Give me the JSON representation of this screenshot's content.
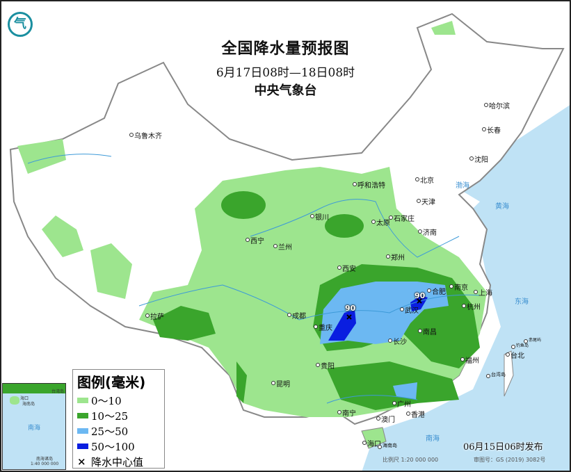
{
  "title": "全国降水量预报图",
  "period": "6月17日08时—18日08时",
  "issuer": "中央气象台",
  "logo_icon": "cma-logo",
  "legend": {
    "title": "图例(毫米)",
    "items": [
      {
        "label": "0～10",
        "color": "#9de58e"
      },
      {
        "label": "10～25",
        "color": "#3aa52c"
      },
      {
        "label": "25～50",
        "color": "#6cb8f2"
      },
      {
        "label": "50～100",
        "color": "#0a1ee0"
      }
    ],
    "center_label": "降水中心值"
  },
  "rain_centers": [
    {
      "value": "90",
      "near": "重庆"
    },
    {
      "value": "90",
      "near": "武汉"
    }
  ],
  "cities": [
    "乌鲁木齐",
    "哈尔滨",
    "长春",
    "沈阳",
    "北京",
    "天津",
    "呼和浩特",
    "石家庄",
    "太原",
    "银川",
    "济南",
    "西宁",
    "兰州",
    "郑州",
    "西安",
    "南京",
    "合肥",
    "上海",
    "杭州",
    "拉萨",
    "成都",
    "武汉",
    "重庆",
    "长沙",
    "南昌",
    "福州",
    "台北",
    "贵阳",
    "昆明",
    "南宁",
    "广州",
    "香港",
    "澳门",
    "海口"
  ],
  "seas": [
    "渤海",
    "黄海",
    "东海",
    "南海"
  ],
  "islands": [
    "台湾岛",
    "海南岛",
    "钓鱼岛",
    "赤尾屿"
  ],
  "inset": {
    "labels": [
      "海口",
      "海南岛",
      "台湾岛",
      "南海",
      "南海诸岛"
    ],
    "scale": "1:40 000 000"
  },
  "publish_time": "06月15日06时发布",
  "scale": "比例尺 1:20 000 000",
  "review_number": "审图号：GS (2019) 3082号",
  "colors": {
    "sea": "#bfe2f5",
    "land": "#ffffff",
    "border": "#888888",
    "river": "#3d9ad8"
  }
}
